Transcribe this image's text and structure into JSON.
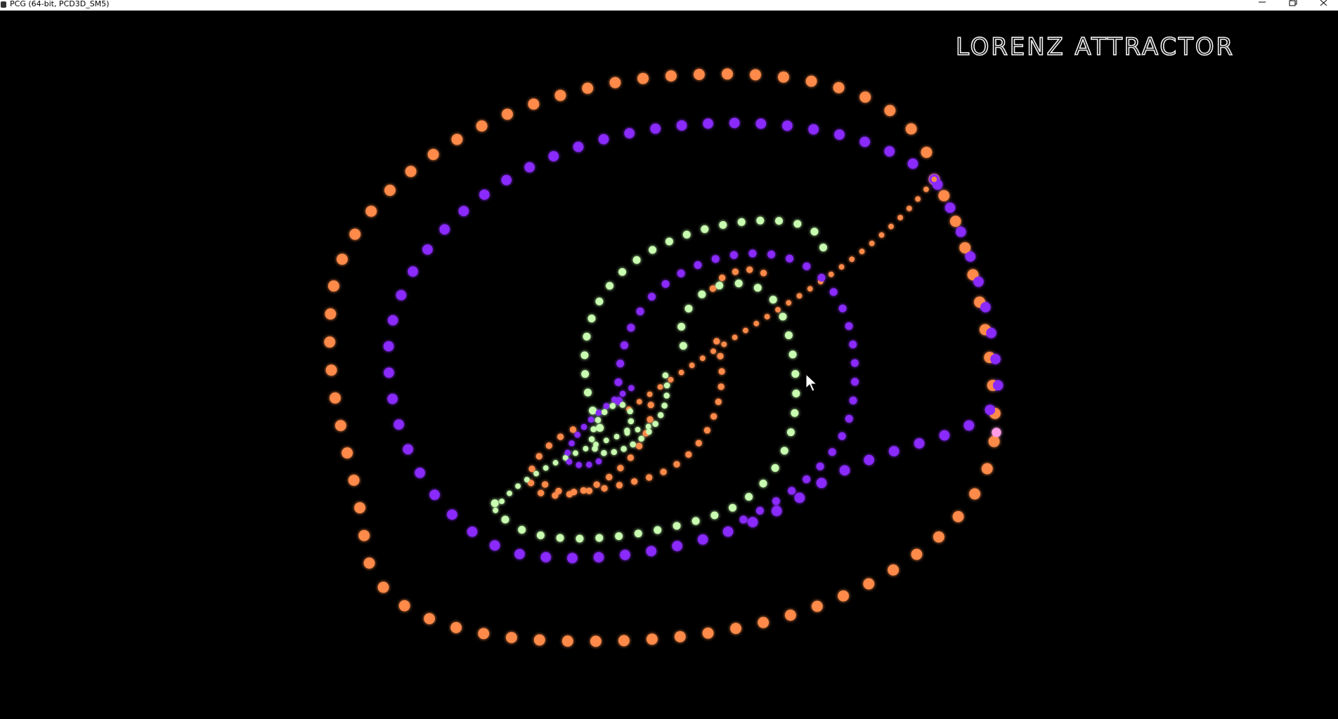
{
  "window": {
    "title": "PCG (64-bit, PCD3D_SM5)"
  },
  "scene": {
    "title": "LORENZ ATTRACTOR"
  }
}
